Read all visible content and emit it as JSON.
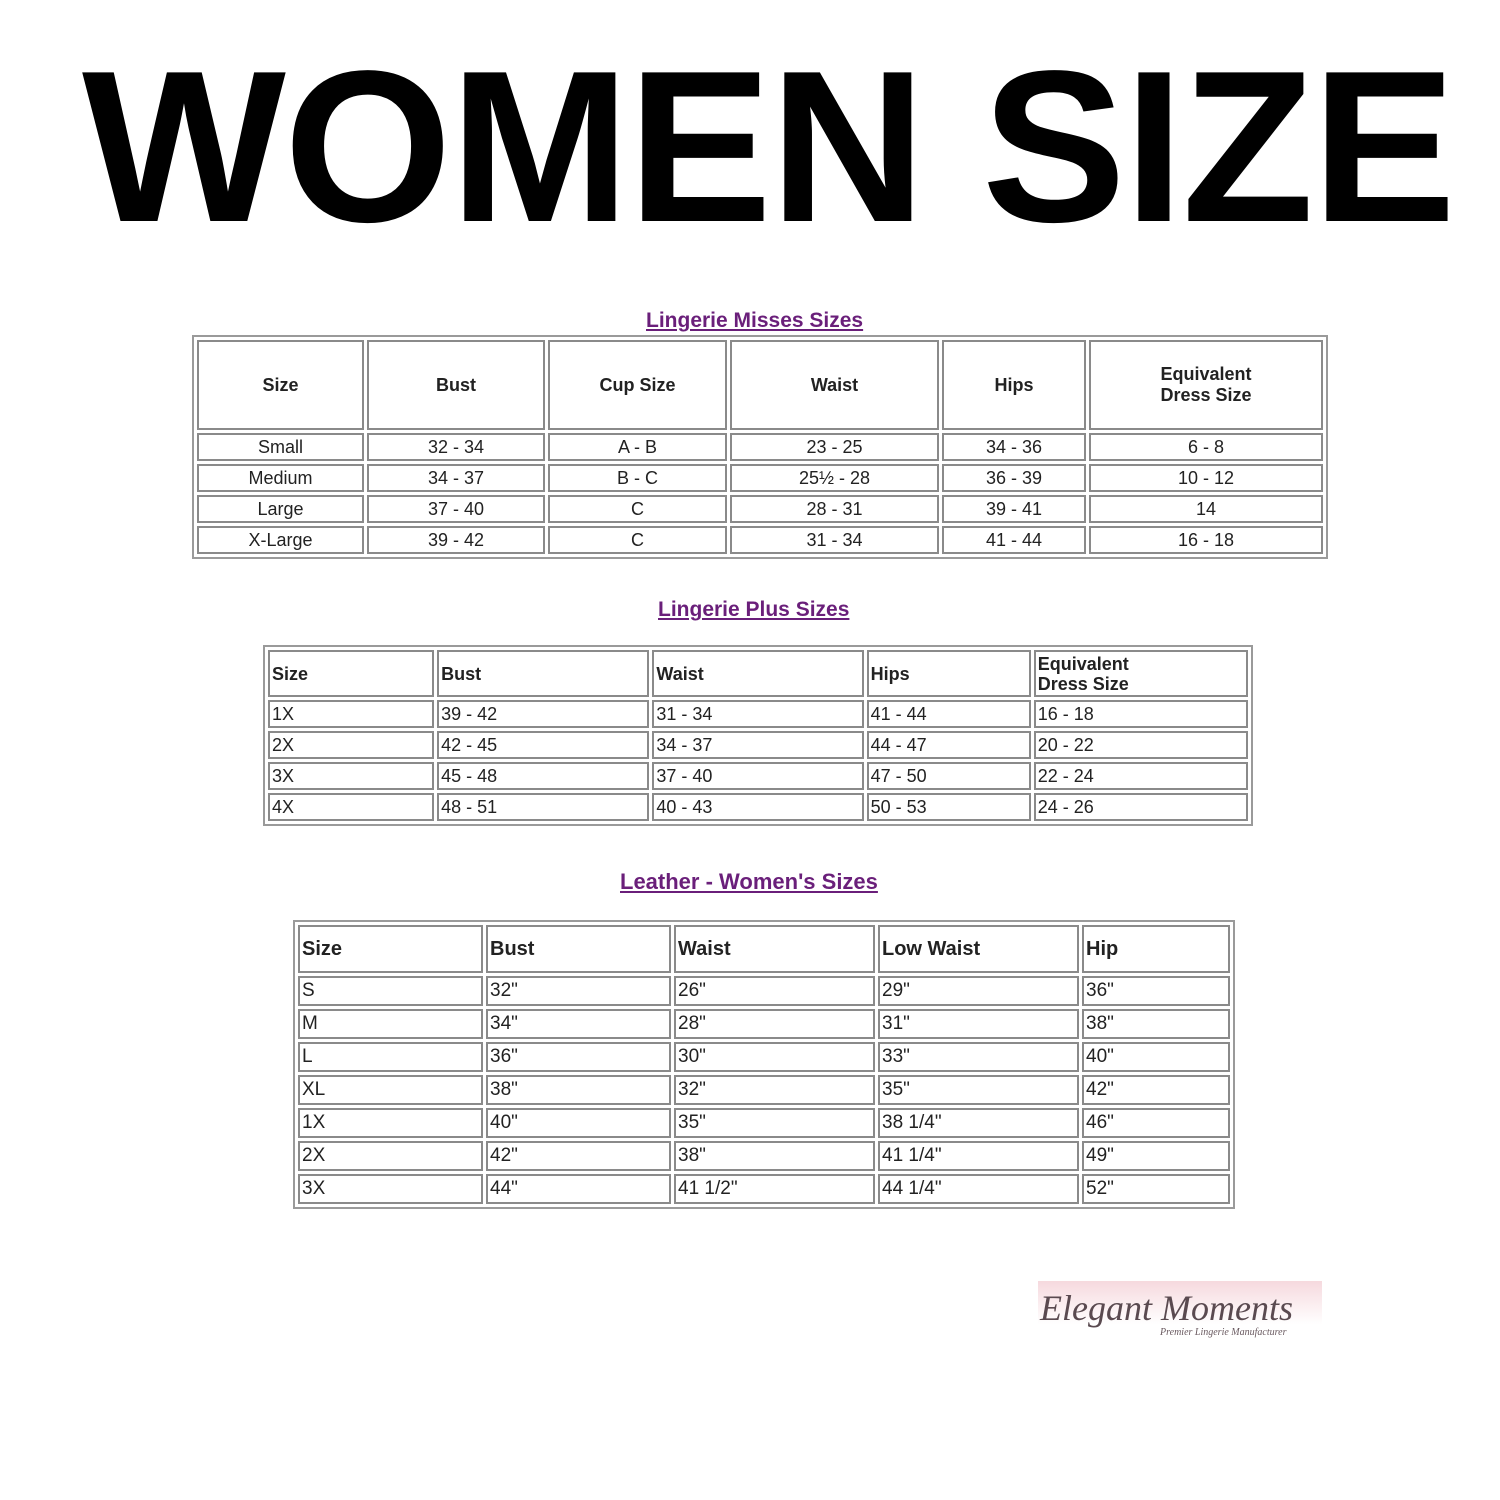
{
  "heading": "WOMEN SIZE",
  "tables": [
    {
      "title": "Lingerie Misses Sizes",
      "headers": [
        "Size",
        "Bust",
        "Cup Size",
        "Waist",
        "Hips",
        "Equivalent Dress Size"
      ],
      "rows": [
        [
          "Small",
          "32 - 34",
          "A - B",
          "23 - 25",
          "34 - 36",
          "6 - 8"
        ],
        [
          "Medium",
          "34 - 37",
          "B - C",
          "25½ - 28",
          "36 - 39",
          "10 - 12"
        ],
        [
          "Large",
          "37 - 40",
          "C",
          "28 - 31",
          "39 - 41",
          "14"
        ],
        [
          "X-Large",
          "39 - 42",
          "C",
          "31 - 34",
          "41 - 44",
          "16 - 18"
        ]
      ]
    },
    {
      "title": "Lingerie Plus Sizes",
      "headers": [
        "Size",
        "Bust",
        "Waist",
        "Hips",
        "Equivalent Dress Size"
      ],
      "rows": [
        [
          "1X",
          "39 - 42",
          "31 - 34",
          "41 - 44",
          "16 - 18"
        ],
        [
          "2X",
          "42 - 45",
          "34 - 37",
          "44 - 47",
          "20 - 22"
        ],
        [
          "3X",
          "45 - 48",
          "37 - 40",
          "47 - 50",
          "22 - 24"
        ],
        [
          "4X",
          "48 - 51",
          "40 - 43",
          "50 - 53",
          "24 - 26"
        ]
      ]
    },
    {
      "title": "Leather - Women's Sizes",
      "headers": [
        "Size",
        "Bust",
        "Waist",
        "Low Waist",
        "Hip"
      ],
      "rows": [
        [
          "S",
          "32\"",
          "26\"",
          "29\"",
          "36\""
        ],
        [
          "M",
          "34\"",
          "28\"",
          "31\"",
          "38\""
        ],
        [
          "L",
          "36\"",
          "30\"",
          "33\"",
          "40\""
        ],
        [
          "XL",
          "38\"",
          "32\"",
          "35\"",
          "42\""
        ],
        [
          "1X",
          "40\"",
          "35\"",
          "38 1/4\"",
          "46\""
        ],
        [
          "2X",
          "42\"",
          "38\"",
          "41 1/4\"",
          "49\""
        ],
        [
          "3X",
          "44\"",
          "41 1/2\"",
          "44 1/4\"",
          "52\""
        ]
      ]
    }
  ],
  "logo": {
    "name": "Elegant Moments",
    "tagline": "Premier Lingerie Manufacturer"
  },
  "colors": {
    "title": "#6a1f7a",
    "border": "#8a8a8a"
  }
}
